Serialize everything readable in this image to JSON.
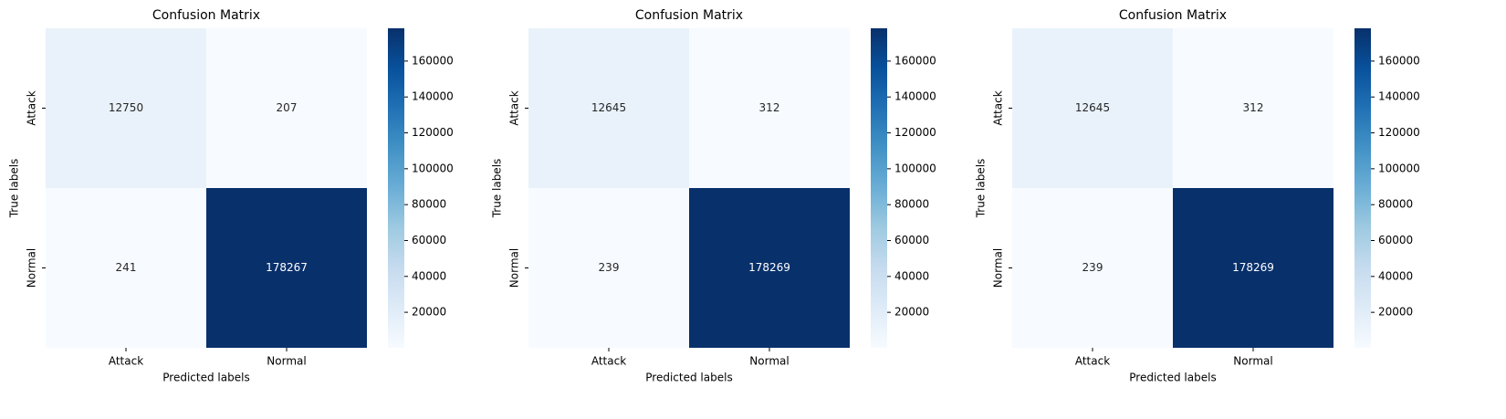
{
  "chart_data": [
    {
      "type": "heatmap",
      "title": "Confusion Matrix",
      "xlabel": "Predicted labels",
      "ylabel": "True labels",
      "x_categories": [
        "Attack",
        "Normal"
      ],
      "y_categories": [
        "Attack",
        "Normal"
      ],
      "values": [
        [
          12750,
          207
        ],
        [
          241,
          178267
        ]
      ],
      "colormap": "Blues",
      "colorbar": {
        "min": 207,
        "max": 178267,
        "ticks": [
          20000,
          40000,
          60000,
          80000,
          100000,
          120000,
          140000,
          160000
        ]
      }
    },
    {
      "type": "heatmap",
      "title": "Confusion Matrix",
      "xlabel": "Predicted labels",
      "ylabel": "True labels",
      "x_categories": [
        "Attack",
        "Normal"
      ],
      "y_categories": [
        "Attack",
        "Normal"
      ],
      "values": [
        [
          12645,
          312
        ],
        [
          239,
          178269
        ]
      ],
      "colormap": "Blues",
      "colorbar": {
        "min": 239,
        "max": 178269,
        "ticks": [
          20000,
          40000,
          60000,
          80000,
          100000,
          120000,
          140000,
          160000
        ]
      }
    },
    {
      "type": "heatmap",
      "title": "Confusion Matrix",
      "xlabel": "Predicted labels",
      "ylabel": "True labels",
      "x_categories": [
        "Attack",
        "Normal"
      ],
      "y_categories": [
        "Attack",
        "Normal"
      ],
      "values": [
        [
          12645,
          312
        ],
        [
          239,
          178269
        ]
      ],
      "colormap": "Blues",
      "colorbar": {
        "min": 239,
        "max": 178269,
        "ticks": [
          20000,
          40000,
          60000,
          80000,
          100000,
          120000,
          140000,
          160000
        ]
      }
    }
  ]
}
